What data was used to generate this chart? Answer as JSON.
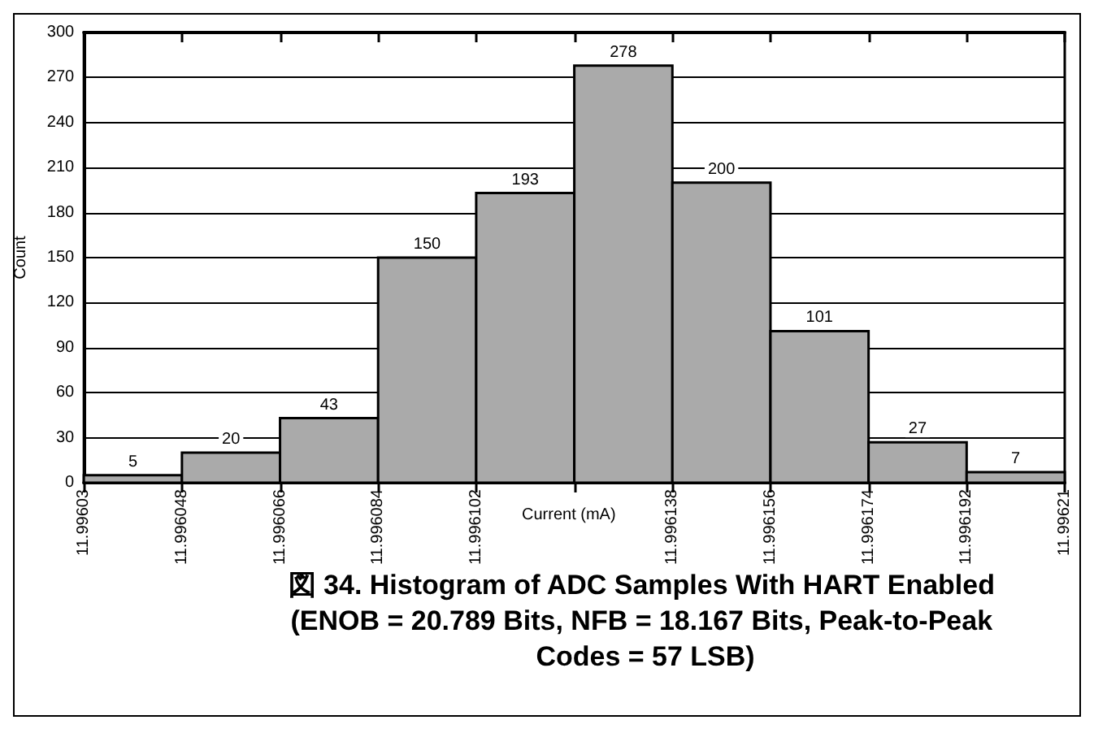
{
  "chart_data": {
    "type": "histogram",
    "title": "図 34. Histogram of ADC Samples With HART Enabled (ENOB = 20.789 Bits, NFB = 18.167 Bits, Peak-to-Peak Codes = 57 LSB)",
    "xlabel": "Current (mA)",
    "ylabel": "Count",
    "bins": [
      11.99603,
      11.996048,
      11.996066,
      11.996084,
      11.996102,
      11.99612,
      11.996138,
      11.996156,
      11.996174,
      11.996192,
      11.99621
    ],
    "values": [
      5,
      20,
      43,
      150,
      193,
      278,
      200,
      101,
      27,
      7
    ],
    "color": "#aaaaaa",
    "data_labels": true,
    "grid": "y",
    "xlim": [
      11.99603,
      11.99621
    ],
    "xticks": [
      11.99603,
      11.996048,
      11.996066,
      11.996084,
      11.996102,
      {
        "value": 11.99612,
        "label": null
      },
      11.996138,
      11.996156,
      11.996174,
      11.996192,
      11.99621
    ],
    "ylim": [
      0,
      300
    ],
    "yticks": [
      0,
      30,
      60,
      90,
      120,
      150,
      180,
      210,
      240,
      270,
      300
    ]
  }
}
